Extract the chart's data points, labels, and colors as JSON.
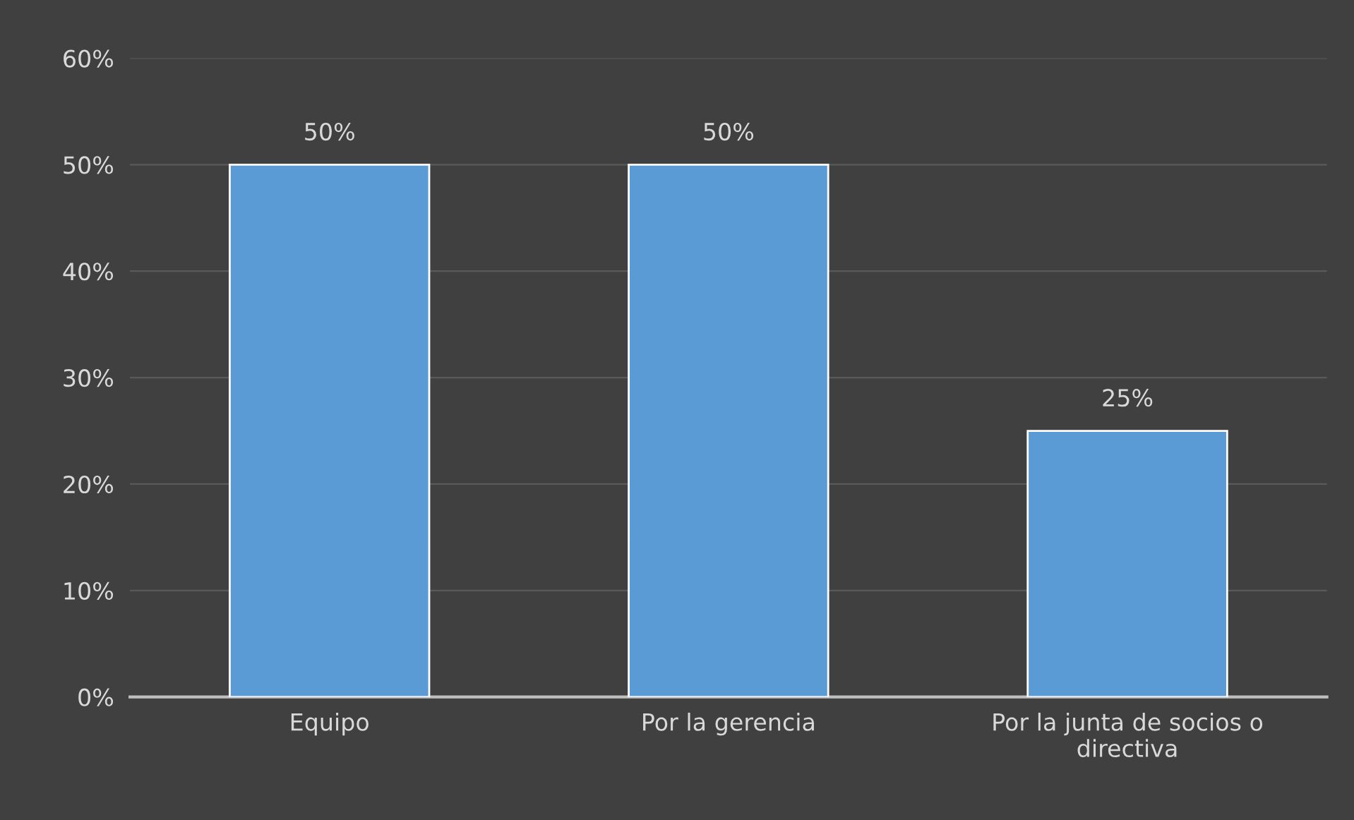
{
  "chart_data": {
    "type": "bar",
    "categories": [
      "Equipo",
      "Por la gerencia",
      "Por la junta de socios o\ndirectiva"
    ],
    "values": [
      50,
      50,
      25
    ],
    "color": "#5b9bd5",
    "value_labels": [
      "50%",
      "50%",
      "25%"
    ],
    "ylim": [
      0,
      60
    ],
    "yticks": [
      {
        "value": 0,
        "label": "0%"
      },
      {
        "value": 10,
        "label": "10%"
      },
      {
        "value": 20,
        "label": "20%"
      },
      {
        "value": 30,
        "label": "30%"
      },
      {
        "value": 40,
        "label": "40%"
      },
      {
        "value": 50,
        "label": "50%"
      },
      {
        "value": 60,
        "label": "60%"
      }
    ],
    "grid": "y",
    "legend": false
  }
}
